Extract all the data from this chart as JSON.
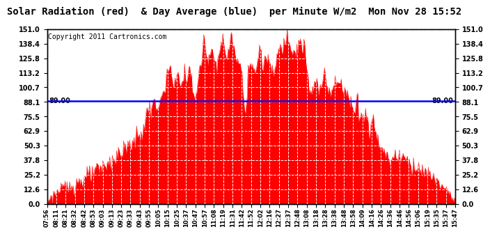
{
  "title": "Solar Radiation (red)  & Day Average (blue)  per Minute W/m2  Mon Nov 28 15:52",
  "copyright": "Copyright 2011 Cartronics.com",
  "y_ticks": [
    0.0,
    12.6,
    25.2,
    37.8,
    50.3,
    62.9,
    75.5,
    88.1,
    100.7,
    113.2,
    125.8,
    138.4,
    151.0
  ],
  "y_min": 0.0,
  "y_max": 151.0,
  "day_average": 89.0,
  "x_labels": [
    "07:56",
    "08:11",
    "08:21",
    "08:32",
    "08:42",
    "08:53",
    "09:03",
    "09:13",
    "09:23",
    "09:33",
    "09:43",
    "09:55",
    "10:05",
    "10:15",
    "10:25",
    "10:37",
    "10:47",
    "10:57",
    "11:08",
    "11:19",
    "11:31",
    "11:42",
    "11:52",
    "12:02",
    "12:16",
    "12:27",
    "12:37",
    "12:48",
    "13:08",
    "13:18",
    "13:28",
    "13:38",
    "13:48",
    "13:58",
    "14:09",
    "14:16",
    "14:26",
    "14:36",
    "14:46",
    "14:56",
    "15:06",
    "15:19",
    "15:35",
    "15:37",
    "15:47"
  ],
  "background_color": "#ffffff",
  "fill_color": "#ff0000",
  "line_color": "#0000ff",
  "plot_bg_color": "#ffffff",
  "title_fontsize": 10,
  "copyright_fontsize": 7
}
